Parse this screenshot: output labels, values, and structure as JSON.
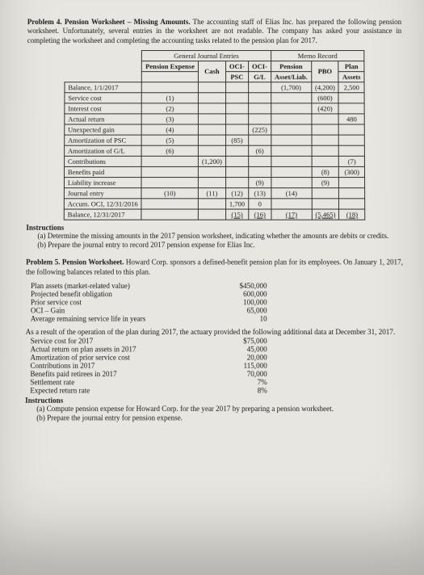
{
  "problem4": {
    "title": "Problem 4. Pension Worksheet – Missing Amounts.",
    "intro": "The accounting staff of Elias Inc. has prepared the following pension worksheet. Unfortunately, several entries in the worksheet are not readable. The company has asked your assistance in completing the worksheet and completing the accounting tasks related to the pension plan for 2017.",
    "group_left": "General Journal Entries",
    "group_right": "Memo Record",
    "cols": {
      "c1": "Pension Expense",
      "c2": "Cash",
      "c3a": "OCI-",
      "c3b": "PSC",
      "c4a": "OCI-",
      "c4b": "G/L",
      "c5a": "Pension",
      "c5b": "Asset/Liab.",
      "c6": "PBO",
      "c7a": "Plan",
      "c7b": "Assets"
    },
    "rows": [
      {
        "label": "Balance, 1/1/2017",
        "c1": "",
        "c2": "",
        "c3": "",
        "c4": "",
        "c5": "(1,700)",
        "c6": "(4,200)",
        "c7": "2,500"
      },
      {
        "label": "Service cost",
        "c1": "(1)",
        "c2": "",
        "c3": "",
        "c4": "",
        "c5": "",
        "c6": "(600)",
        "c7": ""
      },
      {
        "label": "Interest cost",
        "c1": "(2)",
        "c2": "",
        "c3": "",
        "c4": "",
        "c5": "",
        "c6": "(420)",
        "c7": ""
      },
      {
        "label": "Actual return",
        "c1": "(3)",
        "c2": "",
        "c3": "",
        "c4": "",
        "c5": "",
        "c6": "",
        "c7": "480"
      },
      {
        "label": "Unexpected gain",
        "c1": "(4)",
        "c2": "",
        "c3": "",
        "c4": "(225)",
        "c5": "",
        "c6": "",
        "c7": ""
      },
      {
        "label": "Amortization of PSC",
        "c1": "(5)",
        "c2": "",
        "c3": "(85)",
        "c4": "",
        "c5": "",
        "c6": "",
        "c7": ""
      },
      {
        "label": "Amortization of G/L",
        "c1": "(6)",
        "c2": "",
        "c3": "",
        "c4": "(6)",
        "c5": "",
        "c6": "",
        "c7": ""
      },
      {
        "label": "Contributions",
        "c1": "",
        "c2": "(1,200)",
        "c3": "",
        "c4": "",
        "c5": "",
        "c6": "",
        "c7": "(7)"
      },
      {
        "label": "Benefits paid",
        "c1": "",
        "c2": "",
        "c3": "",
        "c4": "",
        "c5": "",
        "c6": "(8)",
        "c7": "(300)"
      },
      {
        "label": "Liability increase",
        "c1": "",
        "c2": "",
        "c3": "",
        "c4": "(9)",
        "c5": "",
        "c6": "(9)",
        "c7": ""
      },
      {
        "label": "Journal entry",
        "c1": "(10)",
        "c2": "(11)",
        "c3": "(12)",
        "c4": "(13)",
        "c5": "(14)",
        "c6": "",
        "c7": ""
      },
      {
        "label": "Accum. OCI, 12/31/2016",
        "c1": "",
        "c2": "",
        "c3": "1,700",
        "c4": "0",
        "c5": "",
        "c6": "",
        "c7": ""
      },
      {
        "label": "Balance, 12/31/2017",
        "c1": "",
        "c2": "",
        "c3": "(15)",
        "c4": "(16)",
        "c5": "(17)",
        "c6": "(5,465)",
        "c7": "(18)"
      }
    ],
    "instr_head": "Instructions",
    "instr_a": "(a) Determine the missing amounts in the 2017 pension worksheet, indicating whether the amounts are debits or credits.",
    "instr_b": "(b) Prepare the journal entry to record 2017 pension expense for Elias Inc."
  },
  "problem5": {
    "title": "Problem 5. Pension Worksheet.",
    "intro": "Howard Corp. sponsors a defined-benefit pension plan for its employees. On January 1, 2017, the following balances related to this plan.",
    "balances": [
      {
        "k": "Plan assets (market-related value)",
        "v": "$450,000"
      },
      {
        "k": "Projected benefit obligation",
        "v": "600,000"
      },
      {
        "k": "Prior service cost",
        "v": "100,000"
      },
      {
        "k": "OCI – Gain",
        "v": "65,000"
      },
      {
        "k": "Average remaining service life in years",
        "v": "10"
      }
    ],
    "mid": "As a result of the operation of the plan during 2017, the actuary provided the following additional data at December 31, 2017.",
    "data2017": [
      {
        "k": "Service cost for 2017",
        "v": "$75,000"
      },
      {
        "k": "Actual return on plan assets in 2017",
        "v": "45,000"
      },
      {
        "k": "Amortization of prior service cost",
        "v": "20,000"
      },
      {
        "k": "Contributions in 2017",
        "v": "115,000"
      },
      {
        "k": "Benefits paid retirees in 2017",
        "v": "70,000"
      },
      {
        "k": "Settlement rate",
        "v": "7%"
      },
      {
        "k": "Expected return rate",
        "v": "8%"
      }
    ],
    "instr_head": "Instructions",
    "instr_a": "(a) Compute pension expense for Howard Corp. for the year 2017 by preparing a pension worksheet.",
    "instr_b": "(b) Prepare the journal entry for pension expense."
  }
}
